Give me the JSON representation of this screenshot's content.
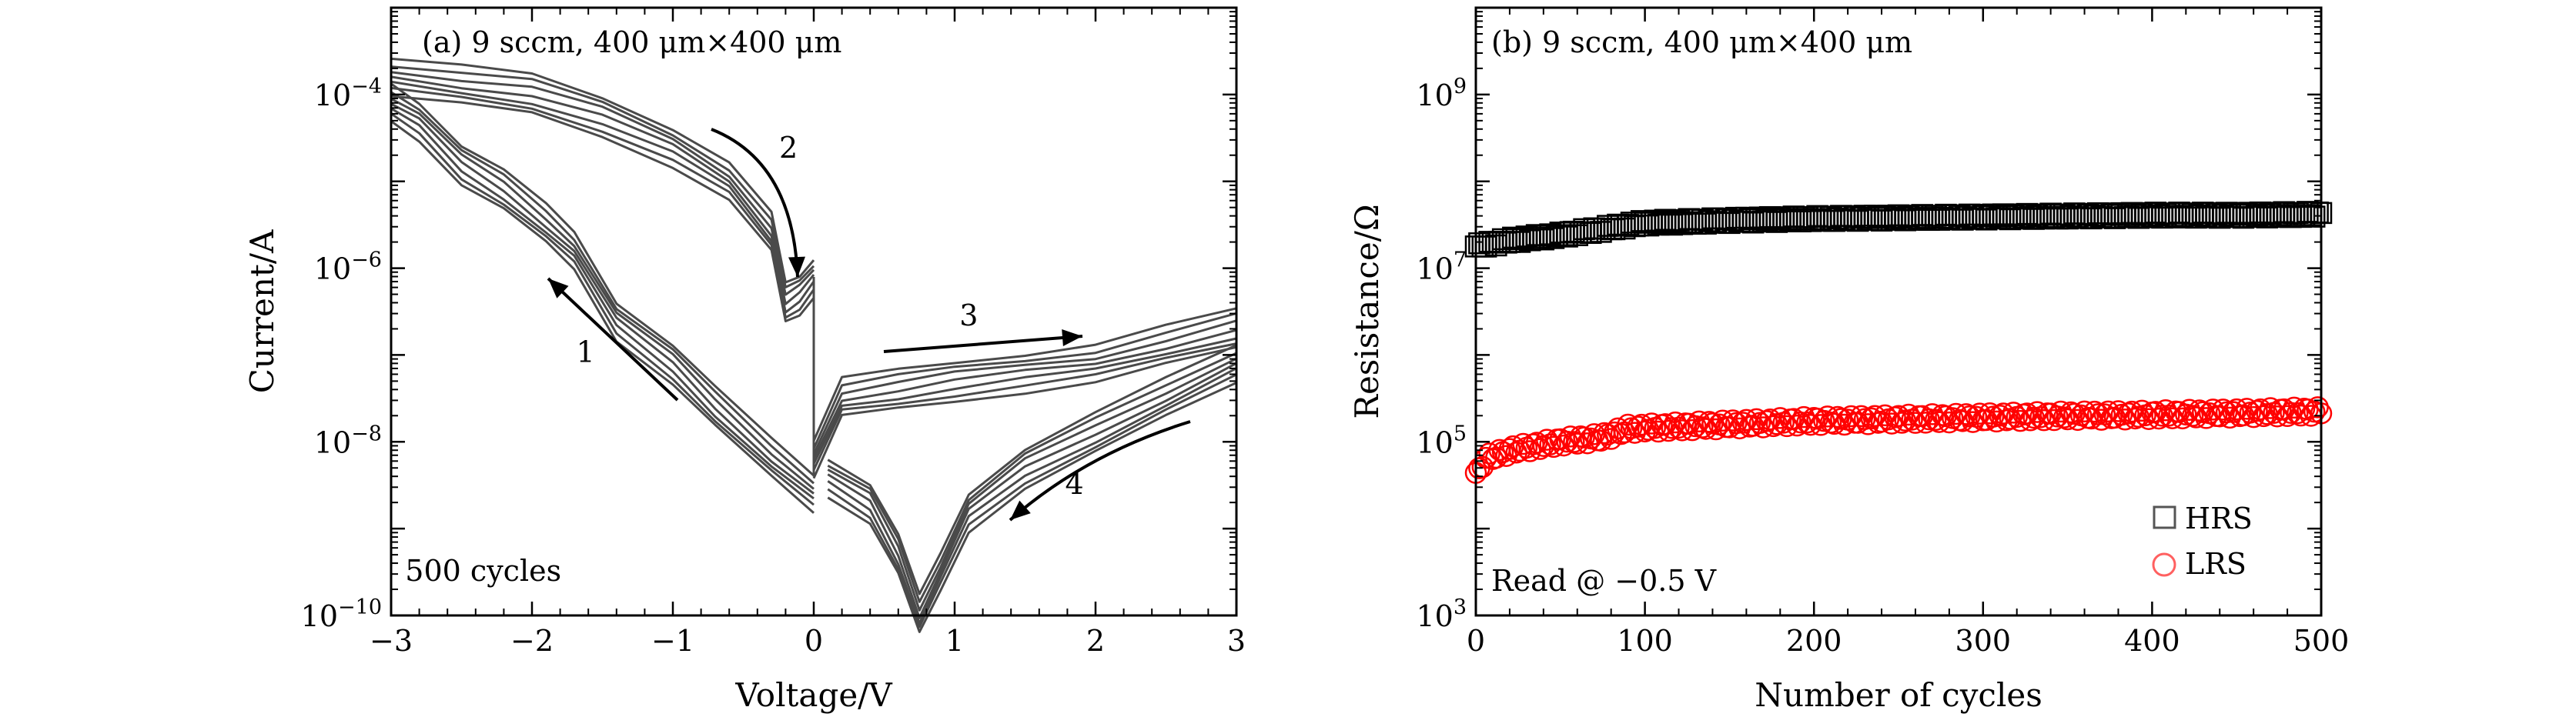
{
  "chart_data": [
    {
      "type": "line",
      "panel_label": "(a) 9 sccm, 400 μm×400 μm",
      "xlabel": "Voltage/V",
      "ylabel": "Current/A",
      "xlim": [
        -3,
        3
      ],
      "ylim_exponent": [
        -10,
        -3
      ],
      "y_scale": "log",
      "x_ticks": [
        "−3",
        "−2",
        "−1",
        "0",
        "1",
        "2",
        "3"
      ],
      "y_ticks": [
        {
          "base": "10",
          "exp": "−10",
          "value_exp": -10
        },
        {
          "base": "10",
          "exp": "−8",
          "value_exp": -8
        },
        {
          "base": "10",
          "exp": "−6",
          "value_exp": -6
        },
        {
          "base": "10",
          "exp": "−4",
          "value_exp": -4
        }
      ],
      "series_color": "#4a4a4a",
      "series": [
        {
          "name": "sweep 1 (0 → −3 V, HRS)",
          "x": [
            0,
            -0.3,
            -0.7,
            -1.0,
            -1.4,
            -1.7,
            -1.9,
            -2.2,
            -2.5,
            -2.8,
            -3.0
          ],
          "log10_y": [
            -8.6,
            -8.2,
            -7.6,
            -7.1,
            -6.6,
            -5.8,
            -5.5,
            -5.1,
            -4.8,
            -4.3,
            -4.1
          ]
        },
        {
          "name": "sweep 2 (−3 → 0 V, LRS)",
          "x": [
            -3.0,
            -2.5,
            -2.0,
            -1.5,
            -1.0,
            -0.6,
            -0.3,
            -0.2,
            -0.1,
            0.0
          ],
          "log10_y": [
            -3.8,
            -3.9,
            -4.0,
            -4.25,
            -4.6,
            -5.0,
            -5.6,
            -6.4,
            -6.3,
            -6.1
          ]
        },
        {
          "name": "sweep 3 (0 → 3 V)",
          "x": [
            0.0,
            0.2,
            0.6,
            1.0,
            1.5,
            2.0,
            2.5,
            3.0
          ],
          "log10_y": [
            -8.2,
            -7.5,
            -7.4,
            -7.3,
            -7.2,
            -7.1,
            -6.9,
            -6.7
          ]
        },
        {
          "name": "sweep 4 (3 → 0 V)",
          "x": [
            3.0,
            2.5,
            2.0,
            1.5,
            1.1,
            0.9,
            0.75,
            0.6,
            0.4,
            0.1
          ],
          "log10_y": [
            -7.1,
            -7.5,
            -7.9,
            -8.3,
            -8.8,
            -9.5,
            -10.0,
            -9.3,
            -8.7,
            -8.4
          ]
        }
      ],
      "annotations": [
        {
          "text": "1",
          "x": -1.62,
          "log10_y": -7.08
        },
        {
          "text": "2",
          "x": -0.18,
          "log10_y": -4.73
        },
        {
          "text": "3",
          "x": 1.1,
          "log10_y": -6.66
        },
        {
          "text": "4",
          "x": 1.85,
          "log10_y": -8.6
        },
        {
          "text": "500 cycles",
          "x": -2.9,
          "log10_y": -9.6
        }
      ]
    },
    {
      "type": "scatter",
      "panel_label": "(b) 9 sccm, 400 μm×400 μm",
      "xlabel": "Number of cycles",
      "ylabel": "Resistance/Ω",
      "xlim": [
        0,
        500
      ],
      "ylim_exponent": [
        3,
        10
      ],
      "y_scale": "log",
      "x_ticks": [
        "0",
        "100",
        "200",
        "300",
        "400",
        "500"
      ],
      "y_ticks": [
        {
          "base": "10",
          "exp": "3",
          "value_exp": 3
        },
        {
          "base": "10",
          "exp": "5",
          "value_exp": 5
        },
        {
          "base": "10",
          "exp": "7",
          "value_exp": 7
        },
        {
          "base": "10",
          "exp": "9",
          "value_exp": 9
        }
      ],
      "series": [
        {
          "name": "HRS",
          "marker": "square",
          "color": "#000000",
          "x": [
            0,
            20,
            50,
            75,
            100,
            150,
            200,
            250,
            300,
            350,
            400,
            450,
            500
          ],
          "log10_y": [
            7.25,
            7.32,
            7.38,
            7.45,
            7.52,
            7.55,
            7.57,
            7.58,
            7.59,
            7.6,
            7.61,
            7.61,
            7.62
          ]
        },
        {
          "name": "LRS",
          "marker": "circle",
          "color": "#ff0000",
          "x": [
            0,
            5,
            20,
            50,
            75,
            90,
            150,
            200,
            250,
            300,
            350,
            400,
            450,
            500
          ],
          "log10_y": [
            4.6,
            4.8,
            4.9,
            5.0,
            5.05,
            5.15,
            5.2,
            5.24,
            5.26,
            5.28,
            5.3,
            5.31,
            5.33,
            5.35
          ]
        }
      ],
      "legend": {
        "location": "bottom-right",
        "entries": [
          "HRS",
          "LRS"
        ]
      },
      "annotation": "Read @ −0.5 V"
    }
  ]
}
